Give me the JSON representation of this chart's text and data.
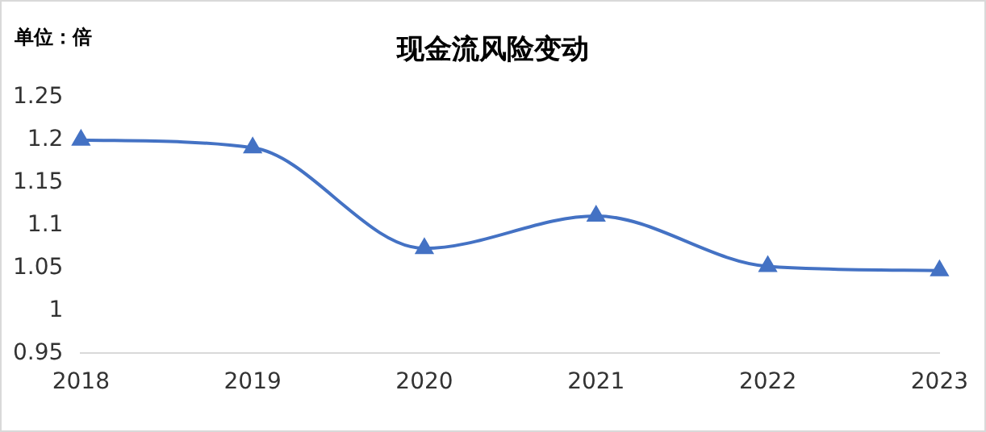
{
  "chart_data": {
    "type": "line",
    "title": "现金流风险变动",
    "annotations": [
      "单位：倍"
    ],
    "categories": [
      "2018",
      "2019",
      "2020",
      "2021",
      "2022",
      "2023"
    ],
    "series": [
      {
        "color": "#4472c4",
        "values": [
          1.2,
          1.191,
          1.073,
          1.111,
          1.052,
          1.047
        ]
      }
    ],
    "ylim": [
      0.95,
      1.25
    ],
    "yticks": [
      0.95,
      1,
      1.05,
      1.1,
      1.15,
      1.2,
      1.25
    ],
    "grid": false,
    "marker": "triangle",
    "legend": false
  }
}
